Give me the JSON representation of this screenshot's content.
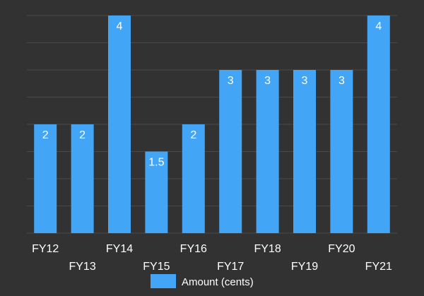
{
  "chart_data": {
    "type": "bar",
    "categories": [
      "FY12",
      "FY13",
      "FY14",
      "FY15",
      "FY16",
      "FY17",
      "FY18",
      "FY19",
      "FY20",
      "FY21"
    ],
    "series": [
      {
        "name": "Amount (cents)",
        "values": [
          2,
          2,
          4,
          1.5,
          2,
          3,
          3,
          3,
          3,
          4
        ]
      }
    ],
    "data_labels": [
      "2",
      "2",
      "4",
      "1.5",
      "2",
      "3",
      "3",
      "3",
      "3",
      "4"
    ],
    "ylim": [
      0,
      4
    ],
    "grid": true,
    "legend_position": "bottom",
    "title": "",
    "xlabel": "",
    "ylabel": ""
  },
  "colors": {
    "background": "#323232",
    "bar": "#42a5f5",
    "text": "#ffffff",
    "grid": "#4a4a4a"
  }
}
